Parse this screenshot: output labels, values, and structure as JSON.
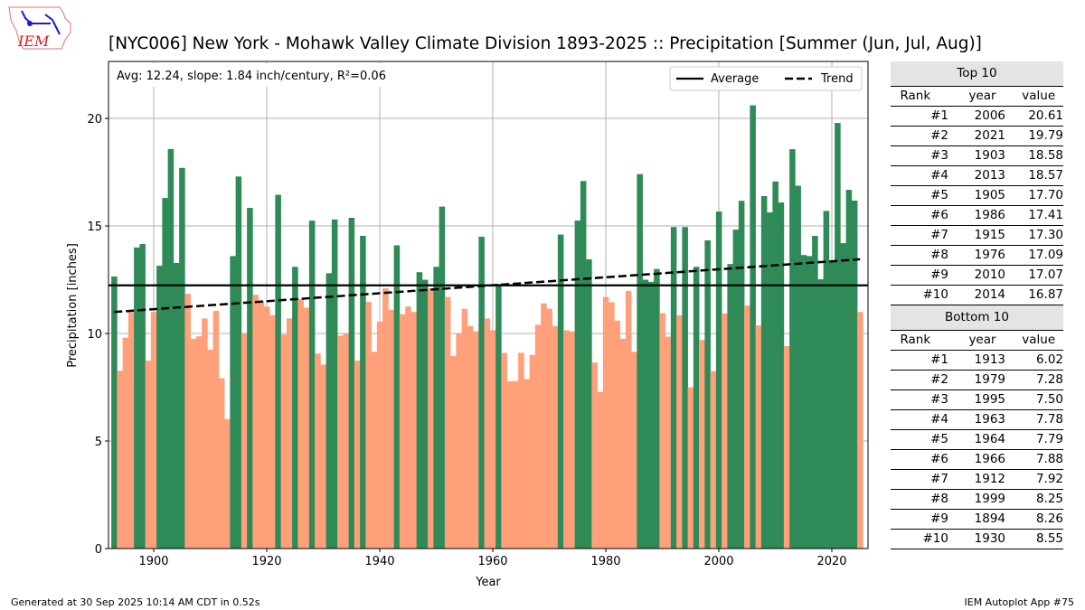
{
  "title": "[NYC006] New York - Mohawk Valley Climate Division 1893-2025 :: Precipitation [Summer (Jun, Jul, Aug)]",
  "logo_text": "IEM",
  "chart_data": {
    "type": "bar",
    "xlabel": "Year",
    "ylabel": "Precipitation [inches]",
    "xlim": [
      1892,
      2026.4
    ],
    "ylim": [
      0,
      22.65
    ],
    "grid": true,
    "xticks": [
      "1900",
      "1920",
      "1940",
      "1960",
      "1980",
      "2000",
      "2020"
    ],
    "yticks": [
      "0",
      "5",
      "10",
      "15",
      "20"
    ],
    "annotation": "Avg: 12.24, slope: 1.84 inch/century, R²=0.06",
    "average": 12.24,
    "trend": {
      "start": [
        1893,
        11.0
      ],
      "end": [
        2025,
        13.45
      ]
    },
    "legend": {
      "placement": "top-right",
      "items": [
        {
          "label": "Average",
          "style": "solid"
        },
        {
          "label": "Trend",
          "style": "dashed"
        }
      ]
    },
    "colors": {
      "above": "#2e8b57",
      "below": "#ffa07a",
      "lines": "#000000",
      "grid": "#b0b0b0"
    },
    "x": [
      1893,
      1894,
      1895,
      1896,
      1897,
      1898,
      1899,
      1900,
      1901,
      1902,
      1903,
      1904,
      1905,
      1906,
      1907,
      1908,
      1909,
      1910,
      1911,
      1912,
      1913,
      1914,
      1915,
      1916,
      1917,
      1918,
      1919,
      1920,
      1921,
      1922,
      1923,
      1924,
      1925,
      1926,
      1927,
      1928,
      1929,
      1930,
      1931,
      1932,
      1933,
      1934,
      1935,
      1936,
      1937,
      1938,
      1939,
      1940,
      1941,
      1942,
      1943,
      1944,
      1945,
      1946,
      1947,
      1948,
      1949,
      1950,
      1951,
      1952,
      1953,
      1954,
      1955,
      1956,
      1957,
      1958,
      1959,
      1960,
      1961,
      1962,
      1963,
      1964,
      1965,
      1966,
      1967,
      1968,
      1969,
      1970,
      1971,
      1972,
      1973,
      1974,
      1975,
      1976,
      1977,
      1978,
      1979,
      1980,
      1981,
      1982,
      1983,
      1984,
      1985,
      1986,
      1987,
      1988,
      1989,
      1990,
      1991,
      1992,
      1993,
      1994,
      1995,
      1996,
      1997,
      1998,
      1999,
      2000,
      2001,
      2002,
      2003,
      2004,
      2005,
      2006,
      2007,
      2008,
      2009,
      2010,
      2011,
      2012,
      2013,
      2014,
      2015,
      2016,
      2017,
      2018,
      2019,
      2020,
      2021,
      2022,
      2023,
      2024,
      2025
    ],
    "values": [
      12.65,
      8.26,
      9.8,
      11.0,
      14.0,
      14.16,
      8.74,
      11.0,
      13.15,
      16.3,
      18.58,
      13.28,
      17.7,
      11.85,
      9.75,
      9.87,
      10.7,
      9.25,
      11.05,
      7.92,
      6.02,
      13.6,
      17.3,
      10.0,
      15.84,
      11.8,
      11.5,
      11.25,
      10.85,
      16.45,
      9.95,
      10.7,
      13.1,
      11.6,
      11.2,
      15.25,
      9.07,
      8.55,
      12.8,
      15.3,
      9.9,
      10.0,
      15.38,
      8.74,
      14.54,
      11.47,
      9.15,
      10.55,
      12.1,
      11.1,
      14.1,
      10.9,
      11.26,
      11.0,
      12.85,
      12.5,
      12.1,
      13.1,
      15.9,
      11.7,
      8.95,
      10.0,
      11.15,
      10.35,
      10.1,
      14.5,
      10.7,
      10.15,
      12.3,
      9.1,
      7.78,
      7.79,
      9.1,
      7.88,
      9.0,
      10.4,
      11.4,
      11.15,
      10.35,
      14.6,
      10.15,
      10.1,
      15.25,
      17.09,
      13.45,
      8.65,
      7.28,
      11.7,
      11.45,
      10.6,
      9.75,
      11.98,
      9.15,
      17.41,
      12.5,
      12.4,
      13.0,
      10.95,
      9.85,
      14.95,
      10.85,
      14.95,
      7.5,
      13.1,
      9.7,
      14.33,
      8.25,
      15.67,
      10.93,
      13.23,
      14.83,
      16.17,
      11.3,
      20.61,
      10.38,
      16.39,
      15.63,
      17.07,
      16.09,
      9.41,
      18.57,
      16.87,
      13.65,
      13.6,
      14.54,
      12.52,
      15.7,
      13.4,
      19.79,
      14.2,
      16.68,
      16.18,
      11.0
    ]
  },
  "top10": {
    "title": "Top 10",
    "headers": [
      "Rank",
      "year",
      "value"
    ],
    "rows": [
      [
        "#1",
        "2006",
        "20.61"
      ],
      [
        "#2",
        "2021",
        "19.79"
      ],
      [
        "#3",
        "1903",
        "18.58"
      ],
      [
        "#4",
        "2013",
        "18.57"
      ],
      [
        "#5",
        "1905",
        "17.70"
      ],
      [
        "#6",
        "1986",
        "17.41"
      ],
      [
        "#7",
        "1915",
        "17.30"
      ],
      [
        "#8",
        "1976",
        "17.09"
      ],
      [
        "#9",
        "2010",
        "17.07"
      ],
      [
        "#10",
        "2014",
        "16.87"
      ]
    ]
  },
  "bottom10": {
    "title": "Bottom 10",
    "headers": [
      "Rank",
      "year",
      "value"
    ],
    "rows": [
      [
        "#1",
        "1913",
        "6.02"
      ],
      [
        "#2",
        "1979",
        "7.28"
      ],
      [
        "#3",
        "1995",
        "7.50"
      ],
      [
        "#4",
        "1963",
        "7.78"
      ],
      [
        "#5",
        "1964",
        "7.79"
      ],
      [
        "#6",
        "1966",
        "7.88"
      ],
      [
        "#7",
        "1912",
        "7.92"
      ],
      [
        "#8",
        "1999",
        "8.25"
      ],
      [
        "#9",
        "1894",
        "8.26"
      ],
      [
        "#10",
        "1930",
        "8.55"
      ]
    ]
  },
  "footer": {
    "generated": "Generated at 30 Sep 2025 10:14 AM CDT in 0.52s",
    "app": "IEM Autoplot App #75"
  }
}
